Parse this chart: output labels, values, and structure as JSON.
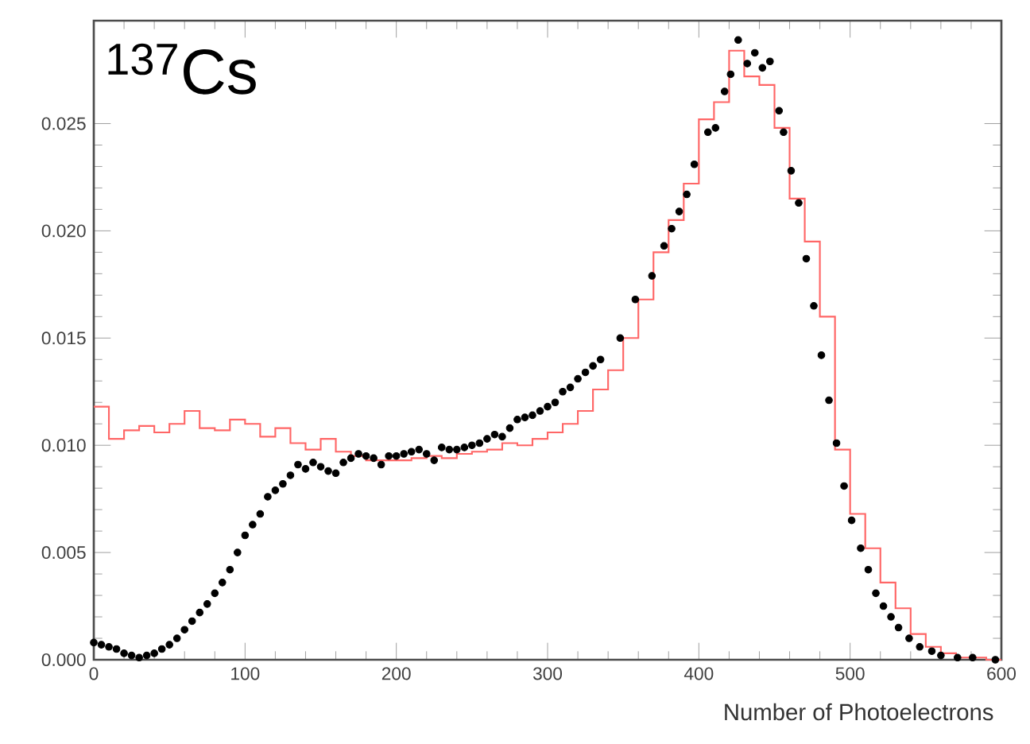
{
  "chart_data": {
    "type": "scatter",
    "xlabel": "Number of Photoelectrons",
    "annotations": [
      "$^{137}$Cs"
    ],
    "xlim": [
      0,
      600
    ],
    "ylim": [
      0,
      0.0298
    ],
    "xticks": [
      0,
      100,
      200,
      300,
      400,
      500,
      600
    ],
    "yticks": [
      {
        "value": 0,
        "label": "0.000"
      },
      {
        "value": 0.005,
        "label": "0.005"
      },
      {
        "value": 0.01,
        "label": "0.010"
      },
      {
        "value": 0.015,
        "label": "0.015"
      },
      {
        "value": 0.02,
        "label": "0.020"
      },
      {
        "value": 0.025,
        "label": "0.025"
      }
    ],
    "marker": "circle",
    "series": [
      {
        "type": "histogram",
        "color": "#ff6666",
        "bins": [
          0,
          10,
          20,
          30,
          40,
          50,
          60,
          70,
          80,
          90,
          100,
          110,
          120,
          130,
          140,
          150,
          160,
          170,
          180,
          190,
          200,
          210,
          220,
          230,
          240,
          250,
          260,
          270,
          280,
          290,
          300,
          310,
          320,
          330,
          340,
          350,
          360,
          370,
          380,
          390,
          400,
          410,
          420,
          430,
          440,
          450,
          460,
          470,
          480,
          490,
          500,
          510,
          520,
          530,
          540,
          550,
          560,
          570,
          580,
          590,
          600
        ],
        "values": [
          0.0118,
          0.0103,
          0.0107,
          0.0109,
          0.0106,
          0.011,
          0.0116,
          0.0108,
          0.0107,
          0.0112,
          0.011,
          0.0104,
          0.0108,
          0.0101,
          0.0098,
          0.0103,
          0.0097,
          0.0095,
          0.0093,
          0.0093,
          0.0093,
          0.0094,
          0.0095,
          0.0094,
          0.0096,
          0.0097,
          0.0098,
          0.0101,
          0.01,
          0.0103,
          0.0106,
          0.011,
          0.0116,
          0.0126,
          0.0135,
          0.015,
          0.0168,
          0.019,
          0.0205,
          0.0222,
          0.0252,
          0.026,
          0.0284,
          0.0272,
          0.0268,
          0.0248,
          0.0215,
          0.0195,
          0.016,
          0.0098,
          0.0068,
          0.0052,
          0.0036,
          0.0024,
          0.0012,
          0.0006,
          0.0003,
          0.0001,
          0.0001,
          0.0
        ]
      },
      {
        "color": "#000000",
        "x": [
          0,
          5,
          10,
          15,
          20,
          25,
          30,
          35,
          40,
          45,
          50,
          55,
          60,
          65,
          70,
          75,
          80,
          85,
          90,
          95,
          100,
          105,
          110,
          115,
          120,
          125,
          130,
          135,
          140,
          145,
          150,
          155,
          160,
          165,
          170,
          175,
          180,
          185,
          190,
          195,
          200,
          205,
          210,
          215,
          220,
          225,
          230,
          235,
          240,
          245,
          250,
          255,
          260,
          265,
          270,
          275,
          280,
          285,
          290,
          295,
          300,
          305,
          310,
          315,
          320,
          325,
          330,
          335,
          348,
          358,
          369,
          377,
          382,
          387,
          392,
          397,
          406,
          411,
          417,
          421,
          426,
          432,
          437,
          442,
          447,
          453,
          456,
          461,
          466,
          471,
          476,
          481,
          486,
          491,
          496,
          501,
          507,
          512,
          517,
          522,
          527,
          532,
          539,
          546,
          554,
          560,
          571,
          581,
          596
        ],
        "values": [
          0.0008,
          0.0007,
          0.0006,
          0.0005,
          0.0003,
          0.0002,
          0.0001,
          0.0002,
          0.0003,
          0.0005,
          0.0007,
          0.001,
          0.0014,
          0.0018,
          0.0022,
          0.0026,
          0.0031,
          0.0036,
          0.0042,
          0.005,
          0.0058,
          0.0063,
          0.0068,
          0.0076,
          0.0079,
          0.0082,
          0.0086,
          0.0091,
          0.0089,
          0.0092,
          0.009,
          0.0088,
          0.0087,
          0.0092,
          0.0094,
          0.0096,
          0.0095,
          0.0094,
          0.0091,
          0.0095,
          0.0095,
          0.0096,
          0.0097,
          0.0098,
          0.0096,
          0.0093,
          0.0099,
          0.0098,
          0.0098,
          0.0099,
          0.01,
          0.0101,
          0.0103,
          0.0105,
          0.0104,
          0.0108,
          0.0112,
          0.0113,
          0.0114,
          0.0116,
          0.0118,
          0.012,
          0.0125,
          0.0127,
          0.0131,
          0.0134,
          0.0137,
          0.014,
          0.015,
          0.0168,
          0.0179,
          0.0193,
          0.0201,
          0.0209,
          0.0217,
          0.0231,
          0.0246,
          0.0248,
          0.0265,
          0.0273,
          0.0289,
          0.0278,
          0.0283,
          0.0276,
          0.0279,
          0.0256,
          0.0246,
          0.0228,
          0.0213,
          0.0187,
          0.0165,
          0.0142,
          0.0121,
          0.0101,
          0.0081,
          0.0065,
          0.0052,
          0.0042,
          0.0031,
          0.0025,
          0.002,
          0.0015,
          0.001,
          0.0006,
          0.0004,
          0.0002,
          0.0001,
          0.0001,
          0.0
        ]
      }
    ]
  }
}
